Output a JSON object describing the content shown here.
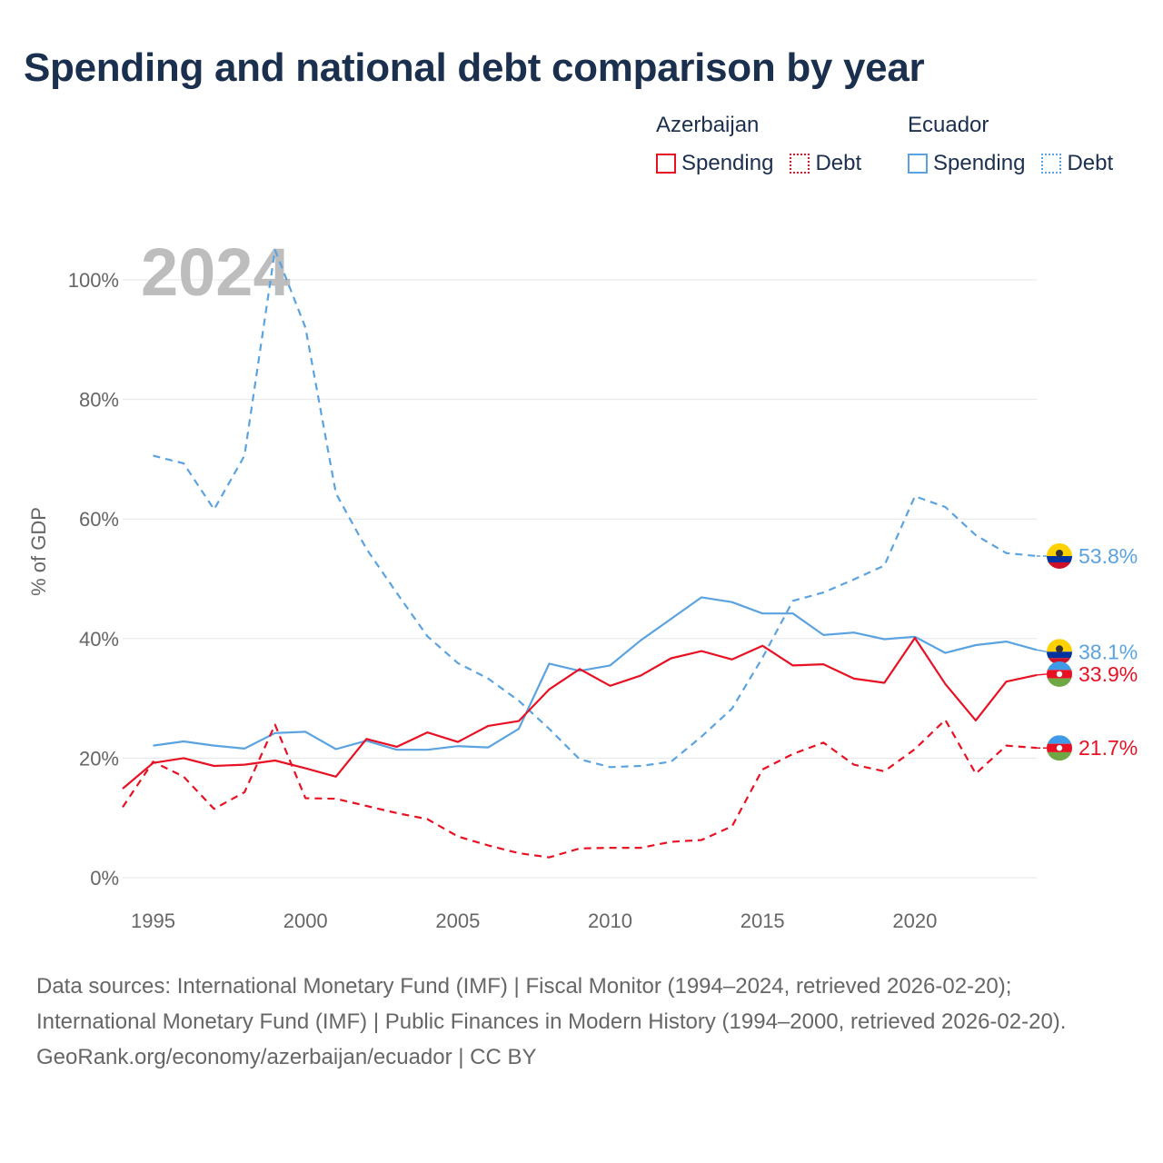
{
  "title": "Spending and national debt comparison by year",
  "colors": {
    "azerbaijan": "#e81123",
    "ecuador": "#5ba3e0"
  },
  "legend": {
    "groups": [
      {
        "name": "Azerbaijan",
        "spending_label": "Spending",
        "debt_label": "Debt"
      },
      {
        "name": "Ecuador",
        "spending_label": "Spending",
        "debt_label": "Debt"
      }
    ]
  },
  "footer": {
    "sources": "Data sources: International Monetary Fund (IMF) | Fiscal Monitor (1994–2024, retrieved 2026-02-20); International Monetary Fund (IMF) | Public Finances in Modern History (1994–2000, retrieved 2026-02-20).",
    "credit": "GeoRank.org/economy/azerbaijan/ecuador | CC BY"
  },
  "chart_data": {
    "type": "line",
    "year_watermark": "2024",
    "ylabel": "% of GDP",
    "ylim": [
      0,
      110
    ],
    "xlim": [
      1994,
      2024
    ],
    "y_ticks": [
      0,
      20,
      40,
      60,
      80,
      100
    ],
    "y_tick_labels": [
      "0%",
      "20%",
      "40%",
      "60%",
      "80%",
      "100%"
    ],
    "x_ticks": [
      1995,
      2000,
      2005,
      2010,
      2015,
      2020
    ],
    "x_tick_labels": [
      "1995",
      "2000",
      "2005",
      "2010",
      "2015",
      "2020"
    ],
    "series": [
      {
        "name": "Ecuador Debt",
        "country": "Ecuador",
        "metric": "Debt",
        "style": "dashed",
        "color": "#5ba3e0",
        "x": [
          1995,
          1996,
          1997,
          1998,
          1999,
          2000,
          2001,
          2002,
          2003,
          2004,
          2005,
          2006,
          2007,
          2008,
          2009,
          2010,
          2011,
          2012,
          2013,
          2014,
          2015,
          2016,
          2017,
          2018,
          2019,
          2020,
          2021,
          2022,
          2023,
          2024
        ],
        "values": [
          70.6,
          69.3,
          61.6,
          70.6,
          105.0,
          92.0,
          64.3,
          55.0,
          47.6,
          40.4,
          35.9,
          33.3,
          29.6,
          24.9,
          19.8,
          18.5,
          18.7,
          19.4,
          23.6,
          28.3,
          36.8,
          46.3,
          47.7,
          49.9,
          52.2,
          63.8,
          62.0,
          57.3,
          54.3,
          53.8
        ],
        "end_label": "53.8%"
      },
      {
        "name": "Ecuador Spending",
        "country": "Ecuador",
        "metric": "Spending",
        "style": "solid",
        "color": "#5ba3e0",
        "x": [
          1995,
          1996,
          1997,
          1998,
          1999,
          2000,
          2001,
          2002,
          2003,
          2004,
          2005,
          2006,
          2007,
          2008,
          2009,
          2010,
          2011,
          2012,
          2013,
          2014,
          2015,
          2016,
          2017,
          2018,
          2019,
          2020,
          2021,
          2022,
          2023,
          2024
        ],
        "values": [
          22.1,
          22.8,
          22.1,
          21.6,
          24.2,
          24.4,
          21.5,
          22.9,
          21.4,
          21.4,
          22.0,
          21.8,
          24.9,
          35.8,
          34.6,
          35.5,
          39.7,
          43.3,
          46.9,
          46.1,
          44.2,
          44.2,
          40.6,
          41.0,
          39.9,
          40.3,
          37.6,
          38.9,
          39.5,
          38.1
        ],
        "end_label": "38.1%"
      },
      {
        "name": "Azerbaijan Spending",
        "country": "Azerbaijan",
        "metric": "Spending",
        "style": "solid",
        "color": "#e81123",
        "x": [
          1994,
          1995,
          1996,
          1997,
          1998,
          1999,
          2000,
          2001,
          2002,
          2003,
          2004,
          2005,
          2006,
          2007,
          2008,
          2009,
          2010,
          2011,
          2012,
          2013,
          2014,
          2015,
          2016,
          2017,
          2018,
          2019,
          2020,
          2021,
          2022,
          2023,
          2024
        ],
        "values": [
          14.9,
          19.2,
          20.0,
          18.7,
          18.9,
          19.6,
          18.3,
          16.9,
          23.2,
          21.9,
          24.3,
          22.7,
          25.4,
          26.2,
          31.5,
          34.9,
          32.1,
          33.8,
          36.7,
          37.9,
          36.5,
          38.8,
          35.5,
          35.7,
          33.3,
          32.6,
          40.1,
          32.4,
          26.3,
          32.8,
          33.9
        ],
        "end_label": "33.9%"
      },
      {
        "name": "Azerbaijan Debt",
        "country": "Azerbaijan",
        "metric": "Debt",
        "style": "dashed",
        "color": "#e81123",
        "x": [
          1994,
          1995,
          1996,
          1997,
          1998,
          1999,
          2000,
          2001,
          2002,
          2003,
          2004,
          2005,
          2006,
          2007,
          2008,
          2009,
          2010,
          2011,
          2012,
          2013,
          2014,
          2015,
          2016,
          2017,
          2018,
          2019,
          2020,
          2021,
          2022,
          2023,
          2024
        ],
        "values": [
          11.8,
          19.4,
          16.9,
          11.5,
          14.3,
          25.6,
          13.3,
          13.2,
          12.0,
          10.8,
          9.8,
          6.9,
          5.4,
          4.1,
          3.4,
          4.9,
          5.0,
          5.0,
          6.0,
          6.3,
          8.6,
          18.1,
          20.7,
          22.6,
          18.9,
          17.8,
          21.5,
          26.4,
          17.4,
          22.1,
          21.7
        ],
        "end_label": "21.7%"
      }
    ]
  }
}
